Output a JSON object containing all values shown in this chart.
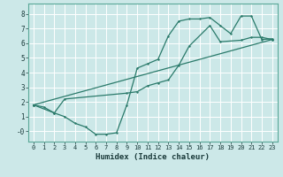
{
  "xlabel": "Humidex (Indice chaleur)",
  "xlim": [
    -0.5,
    23.5
  ],
  "ylim": [
    -0.7,
    8.7
  ],
  "xticks": [
    0,
    1,
    2,
    3,
    4,
    5,
    6,
    7,
    8,
    9,
    10,
    11,
    12,
    13,
    14,
    15,
    16,
    17,
    18,
    19,
    20,
    21,
    22,
    23
  ],
  "yticks": [
    0,
    1,
    2,
    3,
    4,
    5,
    6,
    7,
    8
  ],
  "ytick_labels": [
    "-0",
    "1",
    "2",
    "3",
    "4",
    "5",
    "6",
    "7",
    "8"
  ],
  "bg_color": "#cce8e8",
  "grid_color": "#b0d8d8",
  "line_color": "#2a7a6a",
  "line1_x": [
    0,
    1,
    2,
    3,
    4,
    5,
    6,
    7,
    8,
    9,
    10,
    11,
    12,
    13,
    14,
    15,
    16,
    17,
    18,
    19,
    20,
    21,
    22,
    23
  ],
  "line1_y": [
    1.8,
    1.65,
    1.25,
    1.0,
    0.55,
    0.3,
    -0.2,
    -0.2,
    -0.1,
    1.8,
    4.3,
    4.6,
    4.9,
    6.5,
    7.5,
    7.65,
    7.65,
    7.75,
    7.2,
    6.65,
    7.85,
    7.85,
    6.25,
    6.3
  ],
  "line2_x": [
    0,
    2,
    3,
    9,
    10,
    11,
    12,
    13,
    14,
    15,
    17,
    18,
    20,
    21,
    22,
    23
  ],
  "line2_y": [
    1.8,
    1.25,
    2.2,
    2.6,
    2.7,
    3.1,
    3.3,
    3.5,
    4.5,
    5.8,
    7.2,
    6.1,
    6.2,
    6.4,
    6.4,
    6.25
  ],
  "line3_x": [
    0,
    23
  ],
  "line3_y": [
    1.8,
    6.25
  ]
}
